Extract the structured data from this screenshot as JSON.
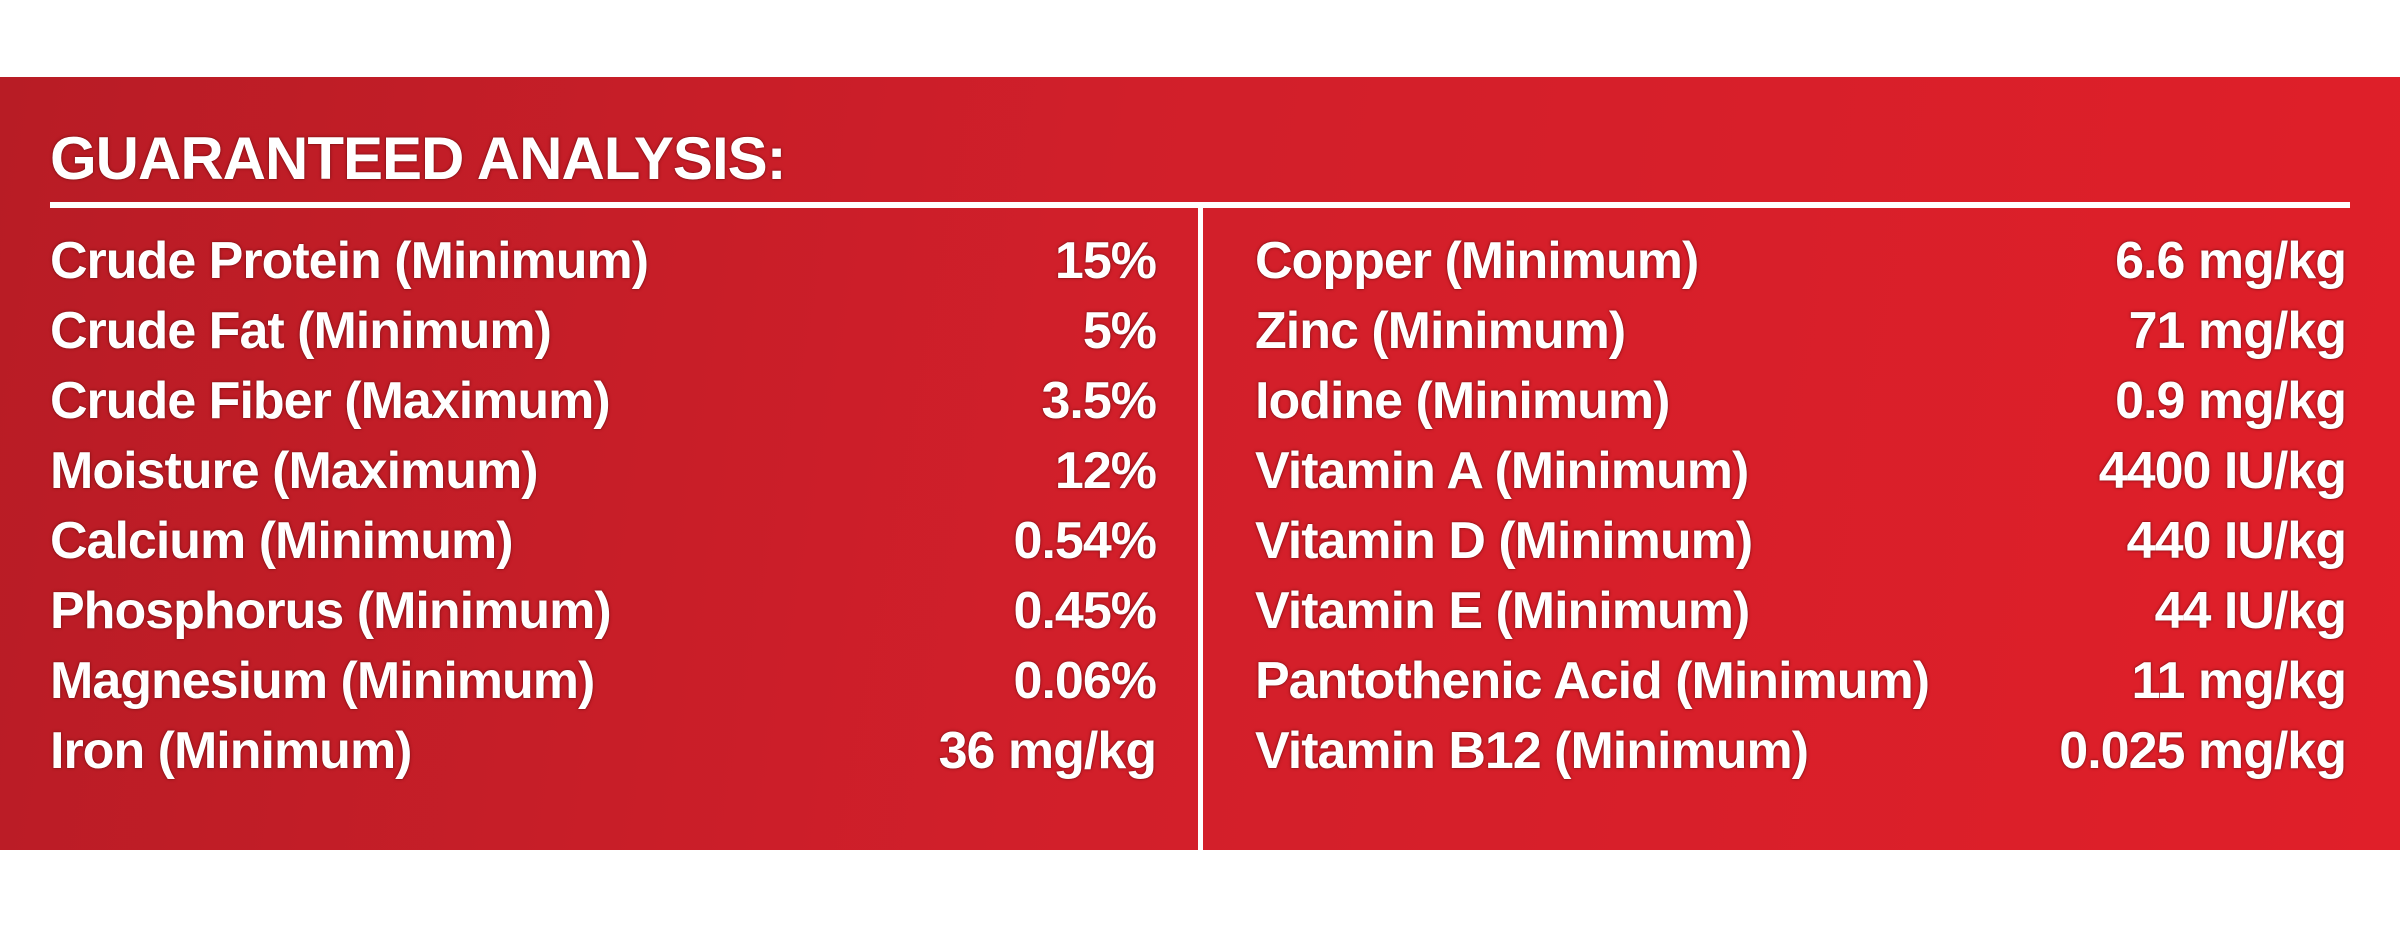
{
  "title": "GUARANTEED ANALYSIS:",
  "table": {
    "left": [
      [
        "Crude Protein (Minimum)",
        "15%"
      ],
      [
        "Crude Fat (Minimum)",
        "5%"
      ],
      [
        "Crude Fiber (Maximum)",
        "3.5%"
      ],
      [
        "Moisture (Maximum)",
        "12%"
      ],
      [
        "Calcium (Minimum)",
        "0.54%"
      ],
      [
        "Phosphorus (Minimum)",
        "0.45%"
      ],
      [
        "Magnesium (Minimum)",
        "0.06%"
      ],
      [
        "Iron (Minimum)",
        "36 mg/kg"
      ]
    ],
    "right": [
      [
        "Copper (Minimum)",
        "6.6 mg/kg"
      ],
      [
        "Zinc (Minimum)",
        "71 mg/kg"
      ],
      [
        "Iodine (Minimum)",
        "0.9 mg/kg"
      ],
      [
        "Vitamin A (Minimum)",
        "4400 IU/kg"
      ],
      [
        "Vitamin D (Minimum)",
        "440 IU/kg"
      ],
      [
        "Vitamin E (Minimum)",
        "44 IU/kg"
      ],
      [
        "Pantothenic Acid (Minimum)",
        "11 mg/kg"
      ],
      [
        "Vitamin B12 (Minimum)",
        "0.025 mg/kg"
      ]
    ]
  }
}
